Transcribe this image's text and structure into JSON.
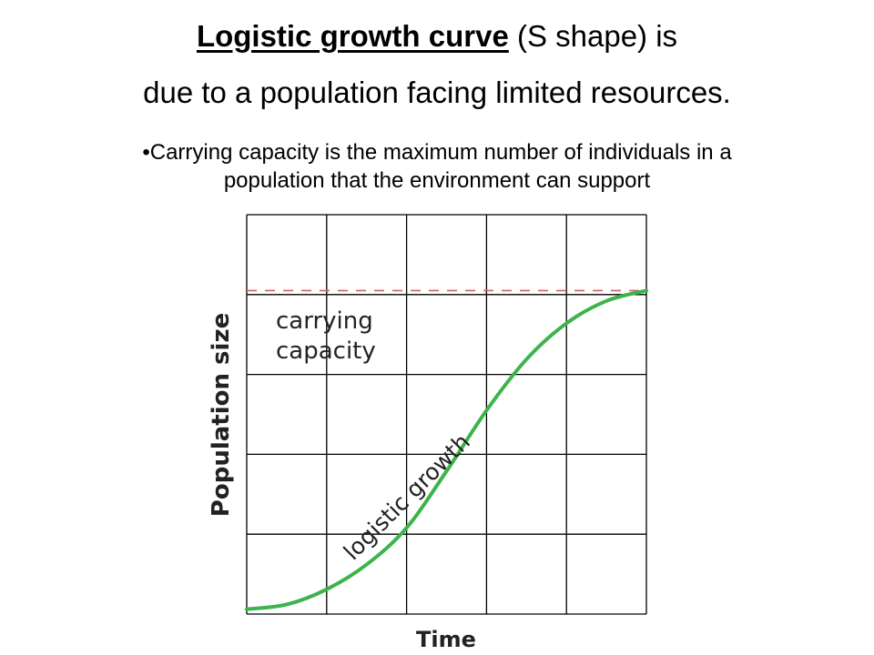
{
  "heading": {
    "emphasis": "Logistic growth curve",
    "rest_line1": " (S shape) is",
    "line2": "due to a population facing limited resources."
  },
  "bullet": {
    "marker": "•",
    "line1": "Carrying capacity is the maximum number of individuals in a",
    "line2": "population that the environment can support"
  },
  "chart_data": {
    "type": "line",
    "xlabel": "Time",
    "ylabel": "Population size",
    "grid": true,
    "grid_cells": [
      5,
      5
    ],
    "carrying_capacity_label_line1": "carrying",
    "carrying_capacity_label_line2": "capacity",
    "curve_label": "logistic growth",
    "colors": {
      "curve": "#3cb44b",
      "capacity_line": "#c86464",
      "grid": "#000000"
    },
    "series": [
      {
        "values_x": [
          0,
          0.5,
          1.0,
          1.5,
          2.0,
          2.5,
          3.0,
          3.5,
          4.0,
          4.5,
          5.0
        ],
        "values_y": [
          0.06,
          0.12,
          0.31,
          0.62,
          1.08,
          1.79,
          2.55,
          3.19,
          3.64,
          3.92,
          4.05
        ]
      }
    ],
    "carrying_capacity": 4.05
  }
}
